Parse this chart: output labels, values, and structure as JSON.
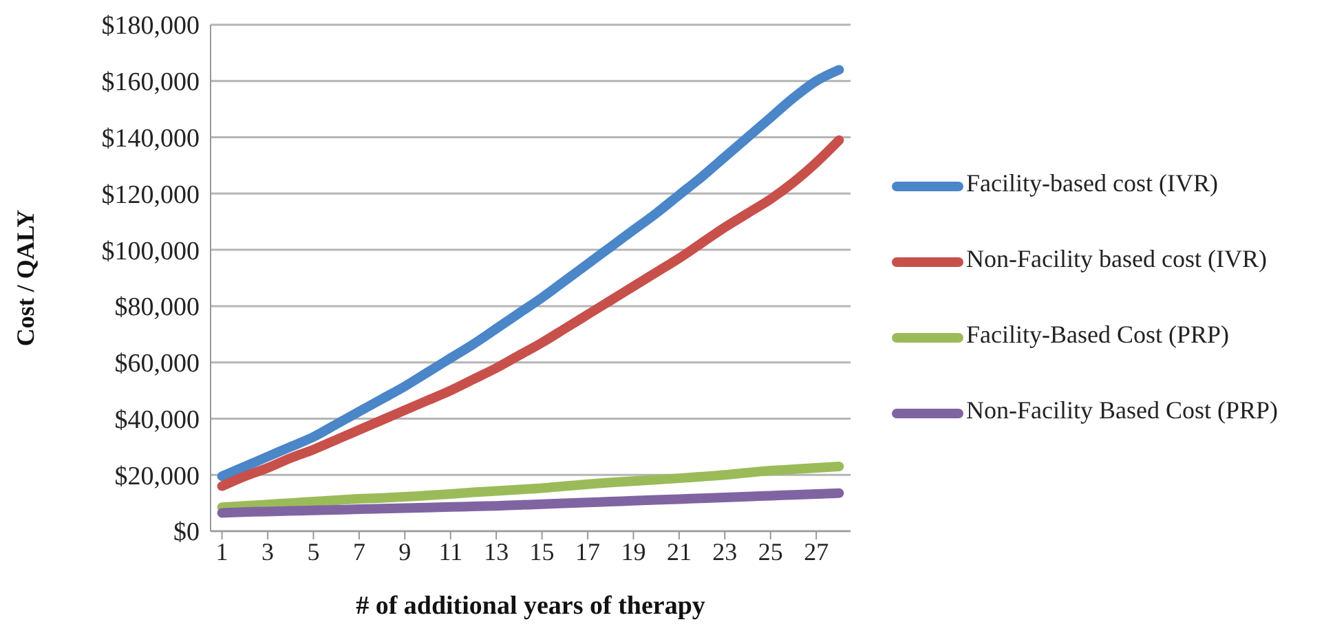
{
  "chart_data": {
    "type": "line",
    "xlabel": "# of additional years of therapy",
    "ylabel": "Cost / QALY",
    "x": [
      1,
      2,
      3,
      4,
      5,
      6,
      7,
      8,
      9,
      10,
      11,
      12,
      13,
      14,
      15,
      16,
      17,
      18,
      19,
      20,
      21,
      22,
      23,
      24,
      25,
      26,
      27,
      28
    ],
    "xlim": [
      0.5,
      28.5
    ],
    "xticks": [
      1,
      3,
      5,
      7,
      9,
      11,
      13,
      15,
      17,
      19,
      21,
      23,
      25,
      27
    ],
    "series": [
      {
        "name": "Facility-based cost (IVR)",
        "color": "#4a86c8",
        "values": [
          19500,
          23000,
          26500,
          30000,
          33500,
          38000,
          42500,
          47000,
          51500,
          56500,
          61500,
          66500,
          72000,
          77500,
          83000,
          89000,
          95000,
          101000,
          107000,
          113000,
          119500,
          126000,
          133000,
          140000,
          147000,
          154000,
          160000,
          164000
        ]
      },
      {
        "name": "Non-Facility based cost (IVR)",
        "color": "#c8504b",
        "values": [
          16000,
          19500,
          22500,
          26000,
          29000,
          32500,
          36000,
          39500,
          43000,
          46500,
          50000,
          54000,
          58000,
          62500,
          67000,
          72000,
          77000,
          82000,
          87000,
          92000,
          97000,
          102500,
          108000,
          113000,
          118000,
          124000,
          131000,
          139000
        ]
      },
      {
        "name": "Facility-Based Cost (PRP)",
        "color": "#9bbb59",
        "values": [
          8500,
          9000,
          9500,
          10000,
          10500,
          11000,
          11500,
          11800,
          12200,
          12700,
          13200,
          13800,
          14300,
          14800,
          15300,
          16000,
          16700,
          17300,
          17800,
          18300,
          18800,
          19400,
          20000,
          20800,
          21500,
          22000,
          22500,
          23000
        ]
      },
      {
        "name": "Non-Facility Based Cost (PRP)",
        "color": "#8064a2",
        "values": [
          6500,
          6800,
          7000,
          7200,
          7400,
          7600,
          7800,
          8000,
          8200,
          8400,
          8600,
          8800,
          9000,
          9300,
          9600,
          9900,
          10200,
          10500,
          10800,
          11100,
          11400,
          11700,
          12000,
          12300,
          12600,
          12900,
          13200,
          13500
        ]
      }
    ],
    "ylim": [
      0,
      180000
    ],
    "yticks": [
      {
        "value": 0,
        "label": "$0"
      },
      {
        "value": 20000,
        "label": "$20,000"
      },
      {
        "value": 40000,
        "label": "$40,000"
      },
      {
        "value": 60000,
        "label": "$60,000"
      },
      {
        "value": 80000,
        "label": "$80,000"
      },
      {
        "value": 100000,
        "label": "$100,000"
      },
      {
        "value": 120000,
        "label": "$120,000"
      },
      {
        "value": 140000,
        "label": "$140,000"
      },
      {
        "value": 160000,
        "label": "$160,000"
      },
      {
        "value": 180000,
        "label": "$180,000"
      }
    ],
    "grid": "y",
    "legend": "right",
    "marker": "none",
    "line_style": "solid"
  }
}
